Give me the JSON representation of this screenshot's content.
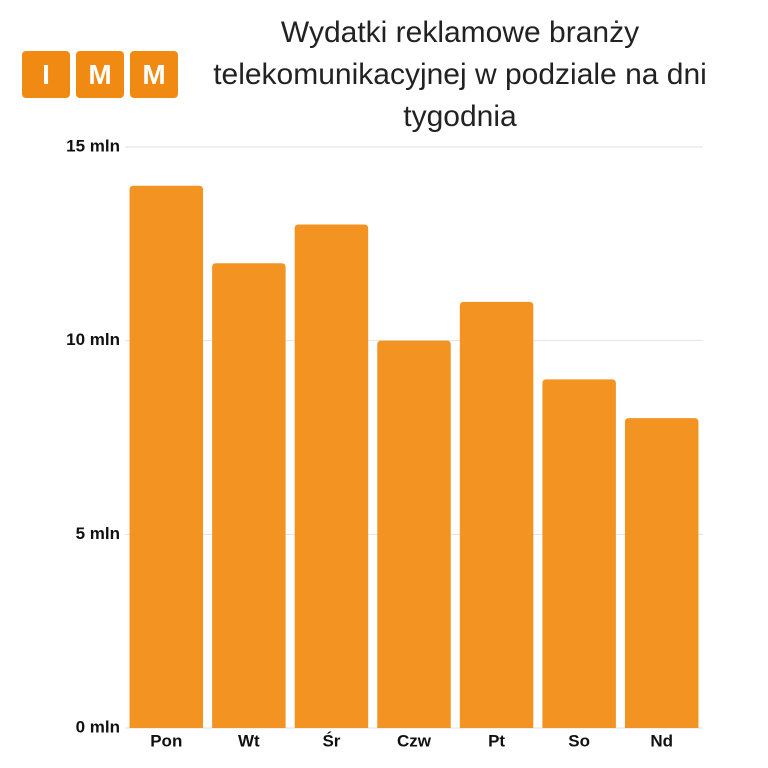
{
  "logo": [
    "I",
    "M",
    "M"
  ],
  "chart_data": {
    "type": "bar",
    "title": "Wydatki reklamowe branży telekomunikacyjnej w podziale na dni tygodnia",
    "categories": [
      "Pon",
      "Wt",
      "Śr",
      "Czw",
      "Pt",
      "So",
      "Nd"
    ],
    "values": [
      14,
      12,
      13,
      10,
      11,
      9,
      8
    ],
    "color": "#f39322",
    "ylim": [
      0,
      15
    ],
    "yticks": [
      {
        "value": 0,
        "label": "0 mln"
      },
      {
        "value": 5,
        "label": "5 mln"
      },
      {
        "value": 10,
        "label": "10 mln"
      },
      {
        "value": 15,
        "label": "15 mln"
      }
    ],
    "grid": true
  }
}
